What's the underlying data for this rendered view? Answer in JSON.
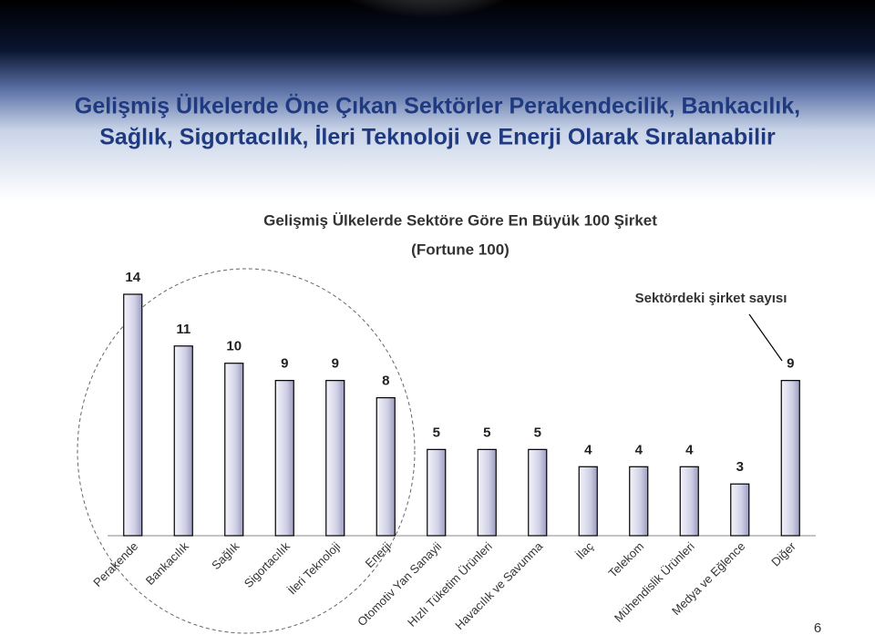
{
  "slide_title": [
    "Gelişmiş Ülkelerde Öne Çıkan Sektörler Perakendecilik, Bankacılık,",
    "Sağlık, Sigortacılık, İleri Teknoloji ve Enerji Olarak Sıralanabilir"
  ],
  "chart_data": {
    "type": "bar",
    "title": "Gelişmiş Ülkelerde Sektöre Göre En Büyük 100 Şirket",
    "subtitle": "(Fortune 100)",
    "annotation": "Sektördeki şirket sayısı",
    "categories": [
      "Perakende",
      "Bankacılık",
      "Sağlık",
      "Sigortacılık",
      "İleri Teknoloji",
      "Enerji",
      "Otomotiv Yan Sanayii",
      "Hızlı Tüketim Ürünleri",
      "Havacılık ve Savunma",
      "İlaç",
      "Telekom",
      "Mühendislik Ürünleri",
      "Medya ve Eğlence",
      "Diğer"
    ],
    "values": [
      14,
      11,
      10,
      9,
      9,
      8,
      5,
      5,
      5,
      4,
      4,
      4,
      3,
      9
    ],
    "color": "#d9d9ec"
  },
  "page_number": 6
}
